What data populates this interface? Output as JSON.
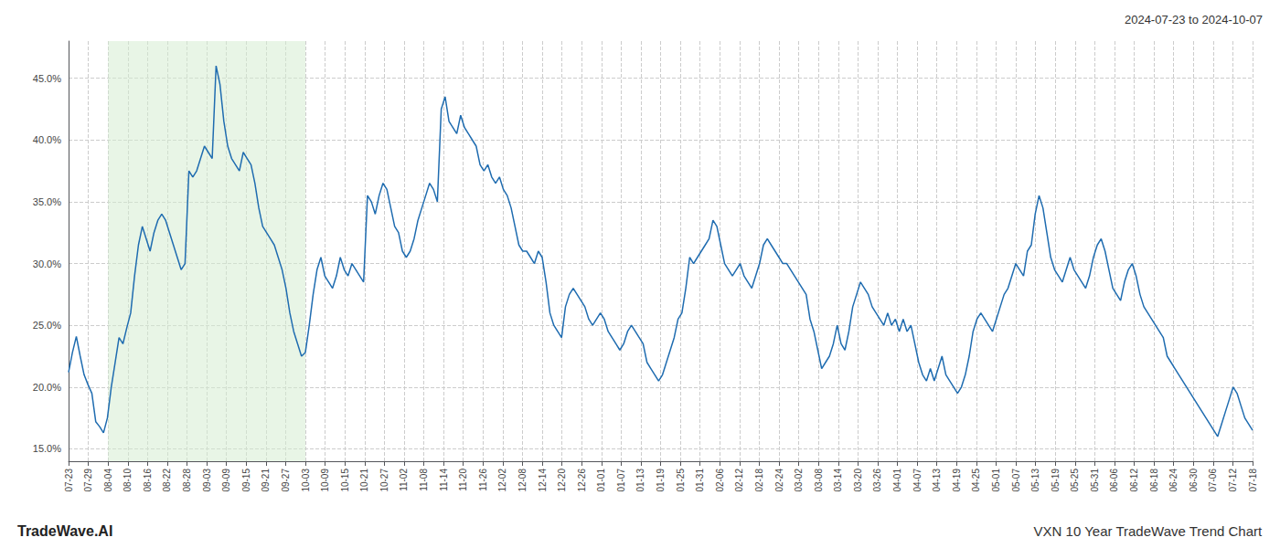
{
  "chart_data": {
    "type": "line",
    "title": "VXN 10 Year TradeWave Trend Chart",
    "subtitle": "2024-07-23 to 2024-10-07",
    "annotation": "TradeWave.AI",
    "color": "#1f6cb0",
    "grid": true,
    "xlim": [
      0,
      305
    ],
    "xticks": [
      {
        "value": 0,
        "label": "07-23"
      },
      {
        "value": 5.083333333333333,
        "label": "07-29"
      },
      {
        "value": 10.166666666666666,
        "label": "08-04"
      },
      {
        "value": 15.25,
        "label": "08-10"
      },
      {
        "value": 20.333333333333332,
        "label": "08-16"
      },
      {
        "value": 25.416666666666668,
        "label": "08-22"
      },
      {
        "value": 30.5,
        "label": "08-28"
      },
      {
        "value": 35.583333333333336,
        "label": "09-03"
      },
      {
        "value": 40.666666666666664,
        "label": "09-09"
      },
      {
        "value": 45.75,
        "label": "09-15"
      },
      {
        "value": 50.833333333333336,
        "label": "09-21"
      },
      {
        "value": 55.916666666666664,
        "label": "09-27"
      },
      {
        "value": 61,
        "label": "10-03"
      },
      {
        "value": 66.08333333333333,
        "label": "10-09"
      },
      {
        "value": 71.16666666666667,
        "label": "10-15"
      },
      {
        "value": 76.25,
        "label": "10-21"
      },
      {
        "value": 81.33333333333333,
        "label": "10-27"
      },
      {
        "value": 86.41666666666667,
        "label": "11-02"
      },
      {
        "value": 91.5,
        "label": "11-08"
      },
      {
        "value": 96.58333333333333,
        "label": "11-14"
      },
      {
        "value": 101.66666666666667,
        "label": "11-20"
      },
      {
        "value": 106.75,
        "label": "11-26"
      },
      {
        "value": 111.83333333333333,
        "label": "12-02"
      },
      {
        "value": 116.91666666666667,
        "label": "12-08"
      },
      {
        "value": 122,
        "label": "12-14"
      },
      {
        "value": 127.08333333333333,
        "label": "12-20"
      },
      {
        "value": 132.16666666666666,
        "label": "12-26"
      },
      {
        "value": 137.25,
        "label": "01-01"
      },
      {
        "value": 142.33333333333334,
        "label": "01-07"
      },
      {
        "value": 147.41666666666666,
        "label": "01-13"
      },
      {
        "value": 152.5,
        "label": "01-19"
      },
      {
        "value": 157.58333333333334,
        "label": "01-25"
      },
      {
        "value": 162.66666666666666,
        "label": "01-31"
      },
      {
        "value": 167.75,
        "label": "02-06"
      },
      {
        "value": 172.83333333333334,
        "label": "02-12"
      },
      {
        "value": 177.91666666666666,
        "label": "02-18"
      },
      {
        "value": 183,
        "label": "02-24"
      },
      {
        "value": 188.08333333333334,
        "label": "03-02"
      },
      {
        "value": 193.16666666666666,
        "label": "03-08"
      },
      {
        "value": 198.25,
        "label": "03-14"
      },
      {
        "value": 203.33333333333334,
        "label": "03-20"
      },
      {
        "value": 208.41666666666666,
        "label": "03-26"
      },
      {
        "value": 213.5,
        "label": "04-01"
      },
      {
        "value": 218.58333333333334,
        "label": "04-07"
      },
      {
        "value": 223.66666666666666,
        "label": "04-13"
      },
      {
        "value": 228.75,
        "label": "04-19"
      },
      {
        "value": 233.83333333333334,
        "label": "04-25"
      },
      {
        "value": 238.91666666666666,
        "label": "05-01"
      },
      {
        "value": 244,
        "label": "05-07"
      },
      {
        "value": 249.08333333333334,
        "label": "05-13"
      },
      {
        "value": 254.16666666666666,
        "label": "05-19"
      },
      {
        "value": 259.25,
        "label": "05-25"
      },
      {
        "value": 264.3333333333333,
        "label": "05-31"
      },
      {
        "value": 269.4166666666667,
        "label": "06-06"
      },
      {
        "value": 274.5,
        "label": "06-12"
      },
      {
        "value": 279.5833333333333,
        "label": "06-18"
      },
      {
        "value": 284.6666666666667,
        "label": "06-24"
      },
      {
        "value": 289.75,
        "label": "06-30"
      },
      {
        "value": 294.8333333333333,
        "label": "07-06"
      },
      {
        "value": 299.9166666666667,
        "label": "07-12"
      },
      {
        "value": 305,
        "label": "07-18"
      }
    ],
    "ylim": [
      14.0,
      48.0
    ],
    "yticks": [
      {
        "value": 15.0,
        "label": "15.0%"
      },
      {
        "value": 20.0,
        "label": "20.0%"
      },
      {
        "value": 25.0,
        "label": "25.0%"
      },
      {
        "value": 30.0,
        "label": "30.0%"
      },
      {
        "value": 35.0,
        "label": "35.0%"
      },
      {
        "value": 40.0,
        "label": "40.0%"
      },
      {
        "value": 45.0,
        "label": "45.0%"
      }
    ],
    "shade": {
      "from": "08-04",
      "to": "10-03",
      "color": "#d6ecd2"
    },
    "values": [
      21.2,
      22.8,
      24.1,
      22.5,
      21.0,
      20.2,
      19.5,
      17.2,
      16.8,
      16.3,
      17.5,
      20.0,
      22.0,
      24.0,
      23.5,
      24.8,
      26.0,
      29.0,
      31.5,
      33.0,
      32.0,
      31.0,
      32.5,
      33.5,
      34.0,
      33.5,
      32.5,
      31.5,
      30.5,
      29.5,
      30.0,
      37.5,
      37.0,
      37.5,
      38.5,
      39.5,
      39.0,
      38.5,
      46.0,
      44.5,
      41.5,
      39.5,
      38.5,
      38.0,
      37.5,
      39.0,
      38.5,
      38.0,
      36.5,
      34.5,
      33.0,
      32.5,
      32.0,
      31.5,
      30.5,
      29.5,
      28.0,
      26.0,
      24.5,
      23.5,
      22.5,
      22.8,
      25.0,
      27.5,
      29.5,
      30.5,
      29.0,
      28.5,
      28.0,
      29.0,
      30.5,
      29.5,
      29.0,
      30.0,
      29.5,
      29.0,
      28.5,
      35.5,
      35.0,
      34.0,
      35.5,
      36.5,
      36.0,
      34.5,
      33.0,
      32.5,
      31.0,
      30.5,
      31.0,
      32.0,
      33.5,
      34.5,
      35.5,
      36.5,
      36.0,
      35.0,
      42.5,
      43.5,
      41.5,
      41.0,
      40.5,
      42.0,
      41.0,
      40.5,
      40.0,
      39.5,
      38.0,
      37.5,
      38.0,
      37.0,
      36.5,
      37.0,
      36.0,
      35.5,
      34.5,
      33.0,
      31.5,
      31.0,
      31.0,
      30.5,
      30.0,
      31.0,
      30.5,
      28.5,
      26.0,
      25.0,
      24.5,
      24.0,
      26.5,
      27.5,
      28.0,
      27.5,
      27.0,
      26.5,
      25.5,
      25.0,
      25.5,
      26.0,
      25.5,
      24.5,
      24.0,
      23.5,
      23.0,
      23.5,
      24.5,
      25.0,
      24.5,
      24.0,
      23.5,
      22.0,
      21.5,
      21.0,
      20.5,
      21.0,
      22.0,
      23.0,
      24.0,
      25.5,
      26.0,
      28.0,
      30.5,
      30.0,
      30.5,
      31.0,
      31.5,
      32.0,
      33.5,
      33.0,
      31.5,
      30.0,
      29.5,
      29.0,
      29.5,
      30.0,
      29.0,
      28.5,
      28.0,
      29.0,
      30.0,
      31.5,
      32.0,
      31.5,
      31.0,
      30.5,
      30.0,
      30.0,
      29.5,
      29.0,
      28.5,
      28.0,
      27.5,
      25.5,
      24.5,
      23.0,
      21.5,
      22.0,
      22.5,
      23.5,
      25.0,
      23.5,
      23.0,
      24.5,
      26.5,
      27.5,
      28.5,
      28.0,
      27.5,
      26.5,
      26.0,
      25.5,
      25.0,
      26.0,
      25.0,
      25.5,
      24.5,
      25.5,
      24.5,
      25.0,
      23.5,
      22.0,
      21.0,
      20.5,
      21.5,
      20.5,
      21.5,
      22.5,
      21.0,
      20.5,
      20.0,
      19.5,
      20.0,
      21.0,
      22.5,
      24.5,
      25.5,
      26.0,
      25.5,
      25.0,
      24.5,
      25.5,
      26.5,
      27.5,
      28.0,
      29.0,
      30.0,
      29.5,
      29.0,
      31.0,
      31.5,
      34.0,
      35.5,
      34.5,
      32.5,
      30.5,
      29.5,
      29.0,
      28.5,
      29.5,
      30.5,
      29.5,
      29.0,
      28.5,
      28.0,
      29.0,
      30.5,
      31.5,
      32.0,
      31.0,
      29.5,
      28.0,
      27.5,
      27.0,
      28.5,
      29.5,
      30.0,
      29.0,
      27.5,
      26.5,
      26.0,
      25.5,
      25.0,
      24.5,
      24.0,
      22.5,
      22.0,
      21.5,
      21.0,
      20.5,
      20.0,
      19.5,
      19.0,
      18.5,
      18.0,
      17.5,
      17.0,
      16.5,
      16.0,
      17.0,
      18.0,
      19.0,
      20.0,
      19.5,
      18.5,
      17.5,
      17.0,
      16.5
    ]
  }
}
